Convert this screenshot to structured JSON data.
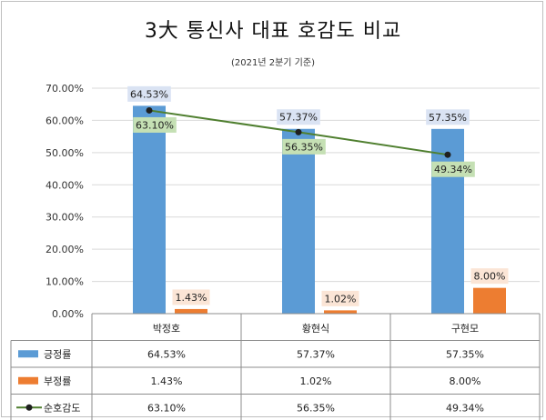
{
  "chart_data": {
    "type": "bar",
    "title": "3大 통신사 대표 호감도 비교",
    "subtitle": "(2021년 2분기 기준)",
    "categories": [
      "박정호",
      "황현식",
      "구현모"
    ],
    "series": [
      {
        "name": "긍정률",
        "type": "bar",
        "color": "#5b9bd5",
        "label_bg": "#dae3f3",
        "values": [
          64.53,
          57.37,
          57.35
        ],
        "labels": [
          "64.53%",
          "57.37%",
          "57.35%"
        ]
      },
      {
        "name": "부정률",
        "type": "bar",
        "color": "#ed7d31",
        "label_bg": "#fbe5d6",
        "values": [
          1.43,
          1.02,
          8.0
        ],
        "labels": [
          "1.43%",
          "1.02%",
          "8.00%"
        ]
      },
      {
        "name": "순호감도",
        "type": "line",
        "color": "#4f7f2f",
        "label_bg": "#c5e0b4",
        "values": [
          63.1,
          56.35,
          49.34
        ],
        "labels": [
          "63.10%",
          "56.35%",
          "49.34%"
        ]
      }
    ],
    "ylim": [
      0,
      70
    ],
    "yticks": [
      "0.00%",
      "10.00%",
      "20.00%",
      "30.00%",
      "40.00%",
      "50.00%",
      "60.00%",
      "70.00%"
    ],
    "grid": true,
    "legend": "data-table"
  }
}
